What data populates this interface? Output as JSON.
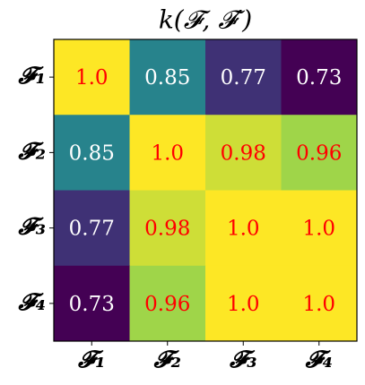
{
  "chart_data": {
    "type": "heatmap",
    "title": "k(𝓕, 𝓕′)",
    "x_categories": [
      "𝓕₁",
      "𝓕₂",
      "𝓕₃",
      "𝓕₄"
    ],
    "y_categories": [
      "𝓕₁",
      "𝓕₂",
      "𝓕₃",
      "𝓕₄"
    ],
    "values": [
      [
        1.0,
        0.85,
        0.77,
        0.73
      ],
      [
        0.85,
        1.0,
        0.98,
        0.96
      ],
      [
        0.77,
        0.98,
        1.0,
        1.0
      ],
      [
        0.73,
        0.96,
        1.0,
        1.0
      ]
    ],
    "value_labels": [
      [
        "1.0",
        "0.85",
        "0.77",
        "0.73"
      ],
      [
        "0.85",
        "1.0",
        "0.98",
        "0.96"
      ],
      [
        "0.77",
        "0.98",
        "1.0",
        "1.0"
      ],
      [
        "0.73",
        "0.96",
        "1.0",
        "1.0"
      ]
    ],
    "colormap": "viridis",
    "text_colors": [
      "#ffffff",
      "#ff0000"
    ]
  }
}
